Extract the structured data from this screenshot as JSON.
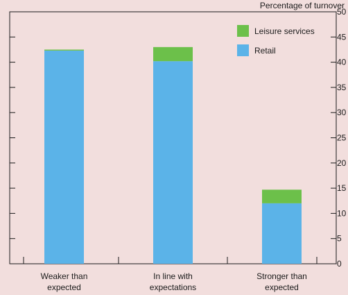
{
  "chart_data": {
    "type": "bar",
    "stacked": true,
    "ylabel": "Percentage of turnover",
    "ylim": [
      0,
      50
    ],
    "yticks": [
      0,
      5,
      10,
      15,
      20,
      25,
      30,
      35,
      40,
      45,
      50
    ],
    "y_axis_side": "right",
    "grid": false,
    "legend_position": "top-right",
    "categories": [
      [
        "Weaker than",
        "expected"
      ],
      [
        "In line with",
        "expectations"
      ],
      [
        "Stronger than",
        "expected"
      ]
    ],
    "series": [
      {
        "name": "Retail",
        "color": "#5bb3e8",
        "values": [
          42.3,
          40.2,
          12.0
        ]
      },
      {
        "name": "Leisure services",
        "color": "#6cc04a",
        "values": [
          0.2,
          2.8,
          2.7
        ]
      }
    ],
    "legend_order": [
      "Leisure services",
      "Retail"
    ]
  }
}
